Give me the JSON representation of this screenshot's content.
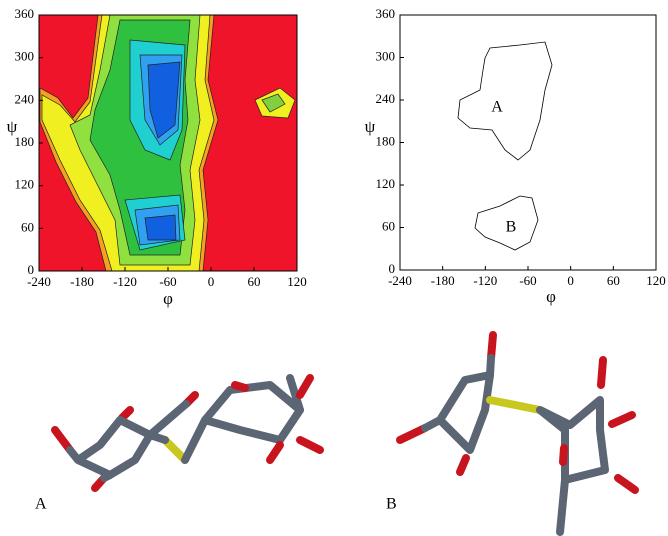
{
  "chart_data": [
    {
      "type": "contour",
      "xlabel": "φ",
      "ylabel": "ψ",
      "xlim": [
        -240,
        120
      ],
      "ylim": [
        0,
        360
      ],
      "xticks": [
        -240,
        -180,
        -120,
        -60,
        0,
        60,
        120
      ],
      "yticks": [
        0,
        60,
        120,
        180,
        240,
        300,
        360
      ]
    },
    {
      "type": "contour",
      "xlabel": "φ",
      "ylabel": "ψ",
      "xlim": [
        -240,
        120
      ],
      "ylim": [
        0,
        360
      ],
      "xticks": [
        -240,
        -180,
        -120,
        -60,
        0,
        60,
        120
      ],
      "yticks": [
        0,
        60,
        120,
        180,
        240,
        300,
        360
      ],
      "annotations": [
        "A",
        "B"
      ]
    }
  ],
  "molecules": [
    {
      "label": "A"
    },
    {
      "label": "B"
    }
  ]
}
